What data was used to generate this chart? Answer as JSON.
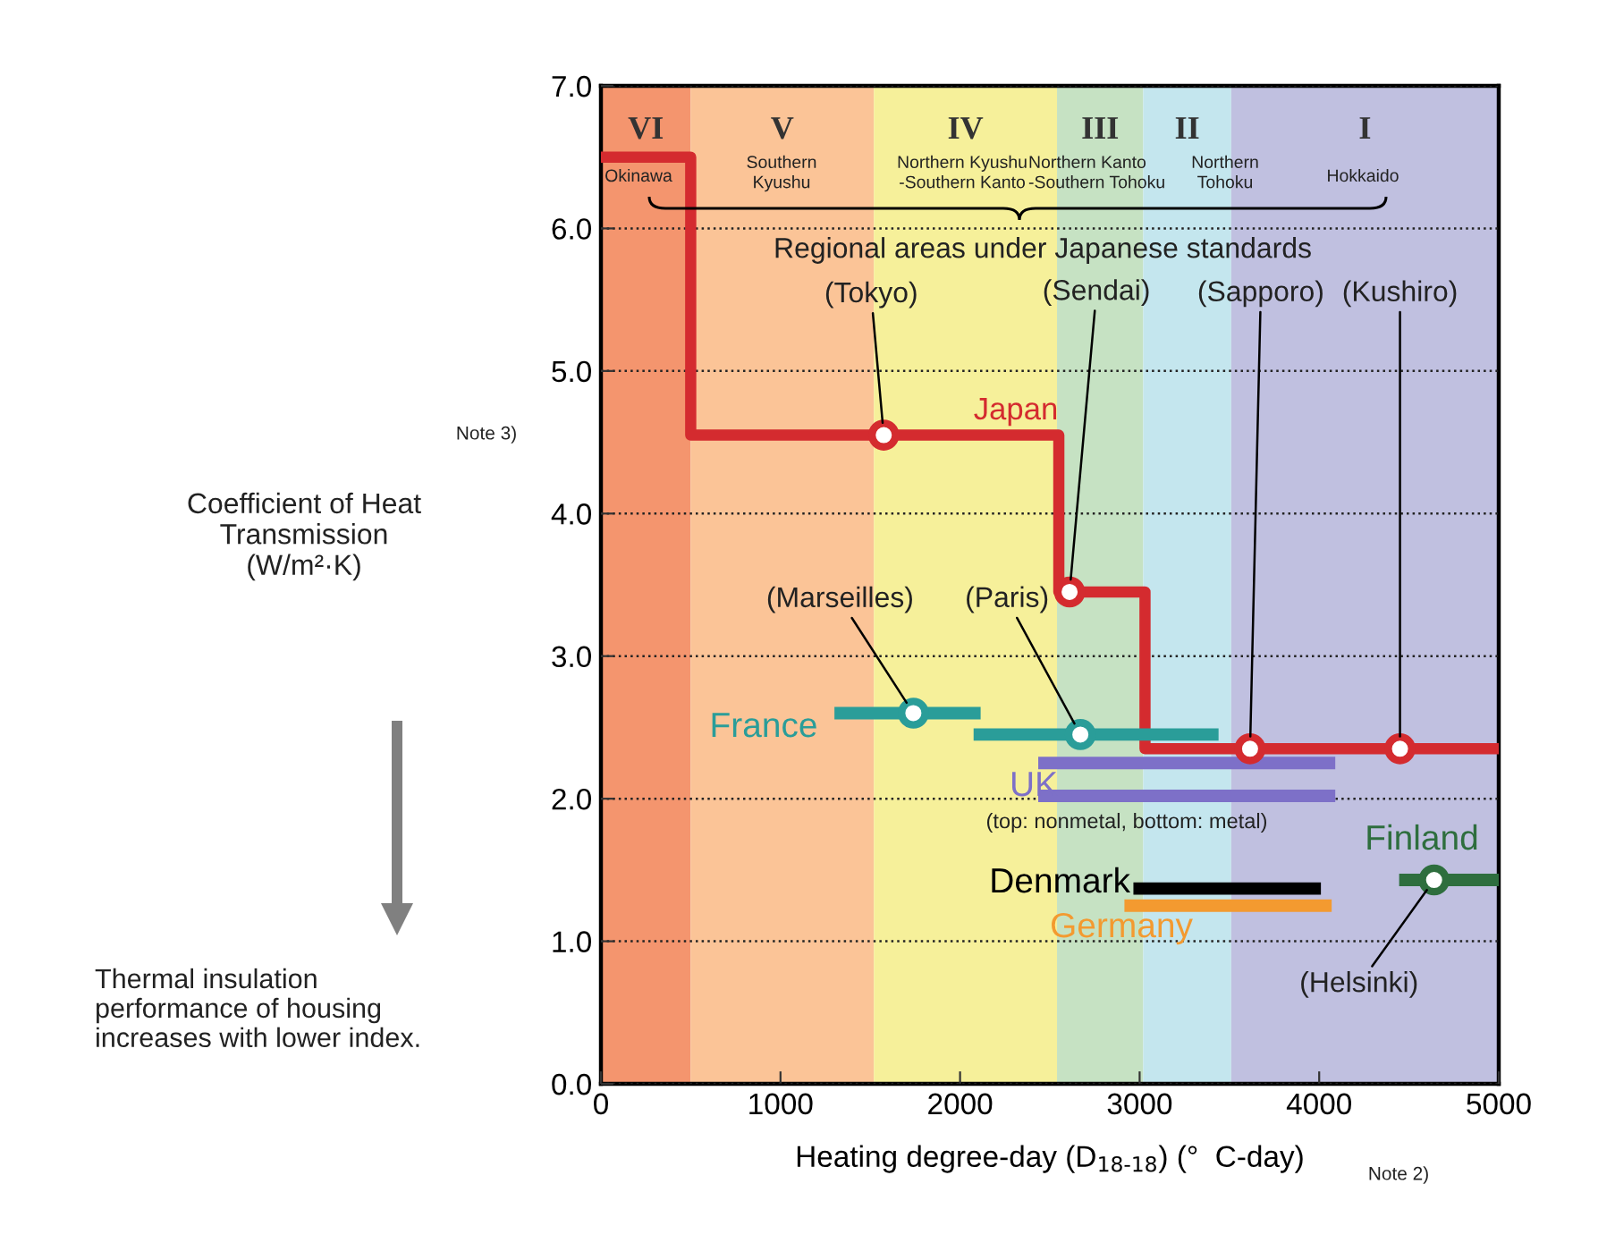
{
  "chart_data": {
    "type": "step",
    "xlabel": "Heating degree-day (D$_{18-18}$) (°  C-day)",
    "ylabel": "Coefficient of Heat\nTransmission\n(W/m²·K)",
    "xlim": [
      0,
      5000
    ],
    "xticks": [
      0,
      1000,
      2000,
      3000,
      4000,
      5000
    ],
    "ylim": [
      0,
      7
    ],
    "yticks": [
      {
        "value": 0,
        "label": "0.0"
      },
      {
        "value": 1,
        "label": "1.0"
      },
      {
        "value": 2,
        "label": "2.0"
      },
      {
        "value": 3,
        "label": "3.0"
      },
      {
        "value": 4,
        "label": "4.0"
      },
      {
        "value": 5,
        "label": "5.0"
      },
      {
        "value": 6,
        "label": "6.0"
      },
      {
        "value": 7,
        "label": "7.0"
      }
    ],
    "grid": "y",
    "legend": false,
    "bands": [
      {
        "axis": "x",
        "from": 0,
        "to": 500,
        "label": "VI",
        "color": "#f4956e"
      },
      {
        "axis": "x",
        "from": 500,
        "to": 1520,
        "label": "V",
        "color": "#fbc497"
      },
      {
        "axis": "x",
        "from": 1520,
        "to": 2540,
        "label": "IV",
        "color": "#f6f09a"
      },
      {
        "axis": "x",
        "from": 2540,
        "to": 3020,
        "label": "III",
        "color": "#c6e2c3"
      },
      {
        "axis": "x",
        "from": 3020,
        "to": 3510,
        "label": "II",
        "color": "#c4e6ee"
      },
      {
        "axis": "x",
        "from": 3510,
        "to": 5000,
        "label": "I",
        "color": "#c0c0e0"
      }
    ],
    "series": [
      {
        "name": "Japan",
        "color": "#d42b2f",
        "x": [
          0,
          500,
          2550,
          3030,
          5000
        ],
        "values": [
          6.5,
          4.55,
          3.45,
          2.35,
          2.35
        ]
      },
      {
        "type": "scatter",
        "color": "#d42b2f",
        "marker": "circle",
        "x": [
          1575,
          2610,
          3615,
          4450
        ],
        "values": [
          4.55,
          3.45,
          2.35,
          2.35
        ]
      },
      {
        "name": "France",
        "type": "line",
        "color": "#2a9d99",
        "x": [
          1335,
          2080,
          2095,
          2110,
          3405
        ],
        "values": [
          2.6,
          2.6,
          null,
          2.45,
          2.45
        ]
      },
      {
        "type": "scatter",
        "color": "#2a9d99",
        "marker": "circle",
        "x": [
          1740,
          2670
        ],
        "values": [
          2.6,
          2.45
        ]
      },
      {
        "name": "UK",
        "type": "line",
        "color": "#7d70c8",
        "x": [
          2470,
          4055
        ],
        "values": [
          2.25,
          2.25
        ]
      },
      {
        "type": "line",
        "color": "#7d70c8",
        "x": [
          2470,
          4055
        ],
        "values": [
          2.02,
          2.02
        ]
      },
      {
        "name": "Denmark",
        "type": "line",
        "color": "#000000",
        "x": [
          3000,
          3975
        ],
        "values": [
          1.37,
          1.37
        ]
      },
      {
        "name": "Germany",
        "type": "line",
        "color": "#f39a30",
        "x": [
          2950,
          4035
        ],
        "values": [
          1.25,
          1.25
        ]
      },
      {
        "name": "Finland",
        "type": "line",
        "color": "#2e6e3e",
        "x": [
          4480,
          5000
        ],
        "values": [
          1.43,
          1.43
        ]
      },
      {
        "type": "scatter",
        "color": "#2e6e3e",
        "marker": "circle",
        "x": [
          4640
        ],
        "values": [
          1.43
        ]
      }
    ],
    "annotations": [
      "Okinawa",
      "Southern\nKyushu",
      "Northern Kyushu\n-Southern Kanto",
      "Northern Kanto\n-Southern Tohoku",
      "Northern\nTohoku",
      "Hokkaido",
      "Regional areas under Japanese standards",
      "(top: nonmetal, bottom: metal)",
      "Note 3)",
      "Note 2)",
      "Thermal insulation\nperformance of housing\nincreases with lower index.",
      {
        "text": "(Tokyo)",
        "x": 1575,
        "y": 4.55
      },
      {
        "text": "(Sendai)",
        "x": 2610,
        "y": 3.45
      },
      {
        "text": "(Sapporo)",
        "x": 3615,
        "y": 2.35
      },
      {
        "text": "(Kushiro)",
        "x": 4450,
        "y": 2.35
      },
      {
        "text": "(Marseilles)",
        "x": 1740,
        "y": 2.6
      },
      {
        "text": "(Paris)",
        "x": 2670,
        "y": 2.45
      },
      {
        "text": "(Helsinki)",
        "x": 4640,
        "y": 1.43
      }
    ]
  }
}
